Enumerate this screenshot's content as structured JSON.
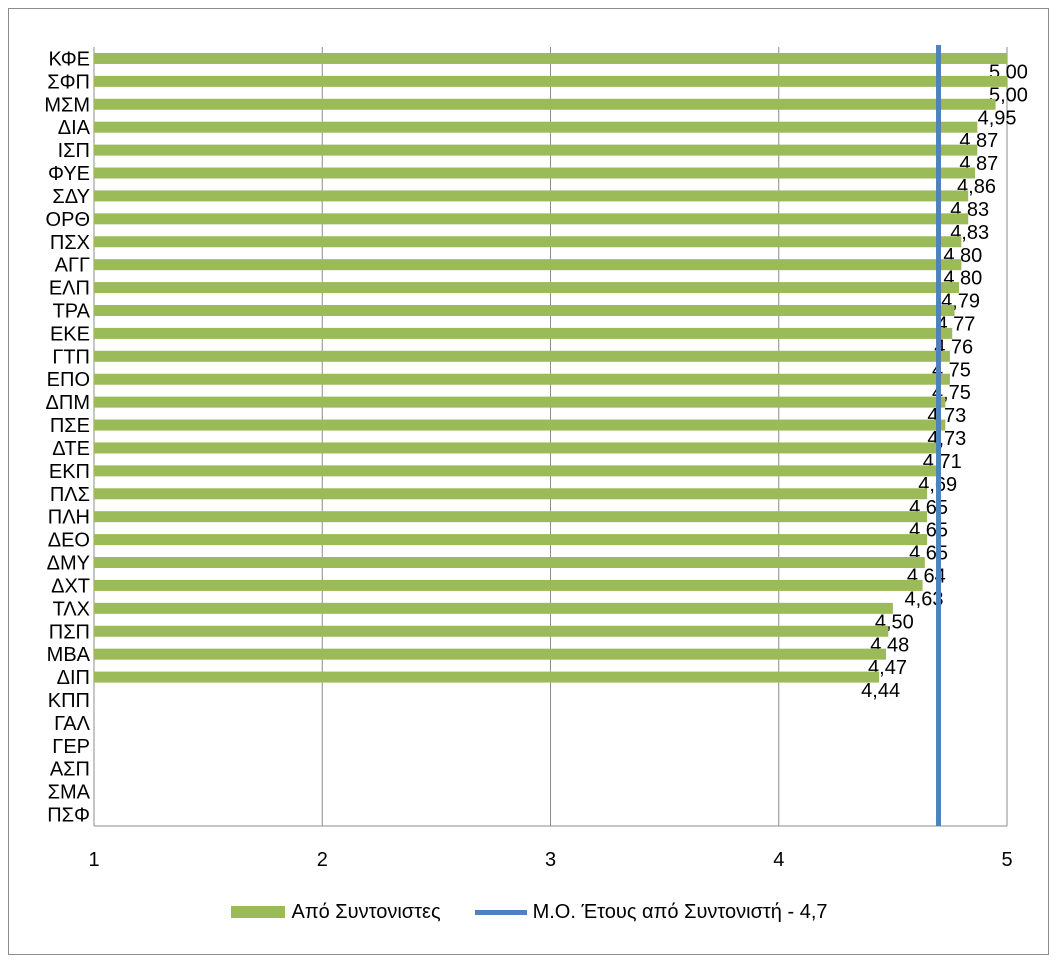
{
  "chart_data": {
    "type": "bar",
    "orientation": "horizontal",
    "title": "",
    "xlabel": "",
    "ylabel": "",
    "xlim": [
      1,
      5
    ],
    "xticks": [
      1,
      2,
      3,
      4,
      5
    ],
    "grid": true,
    "legend_position": "bottom",
    "categories": [
      "ΚΦΕ",
      "ΣΦΠ",
      "ΜΣΜ",
      "ΔΙΑ",
      "ΙΣΠ",
      "ΦΥΕ",
      "ΣΔΥ",
      "ΟΡΘ",
      "ΠΣΧ",
      "ΑΓΓ",
      "ΕΛΠ",
      "ΤΡΑ",
      "ΕΚΕ",
      "ΓΤΠ",
      "ΕΠΟ",
      "ΔΠΜ",
      "ΠΣΕ",
      "ΔΤΕ",
      "ΕΚΠ",
      "ΠΛΣ",
      "ΠΛΗ",
      "ΔΕΟ",
      "ΔΜΥ",
      "ΔΧΤ",
      "ΤΛΧ",
      "ΠΣΠ",
      "ΜΒΑ",
      "ΔΙΠ",
      "ΚΠΠ",
      "ΓΑΛ",
      "ΓΕΡ",
      "ΑΣΠ",
      "ΣΜΑ",
      "ΠΣΦ"
    ],
    "series": [
      {
        "name": "Από Συντονιστες",
        "color": "#9bbb59",
        "values": [
          5.0,
          5.0,
          4.95,
          4.87,
          4.87,
          4.86,
          4.83,
          4.83,
          4.8,
          4.8,
          4.79,
          4.77,
          4.76,
          4.75,
          4.75,
          4.73,
          4.73,
          4.71,
          4.69,
          4.65,
          4.65,
          4.65,
          4.64,
          4.63,
          4.5,
          4.48,
          4.47,
          4.44,
          null,
          null,
          null,
          null,
          null,
          null
        ],
        "labels": [
          "5,00",
          "5,00",
          "4,95",
          "4,87",
          "4,87",
          "4,86",
          "4,83",
          "4,83",
          "4,80",
          "4,80",
          "4,79",
          "4,77",
          "4,76",
          "4,75",
          "4,75",
          "4,73",
          "4,73",
          "4,71",
          "4,69",
          "4,65",
          "4,65",
          "4,65",
          "4,64",
          "4,63",
          "4,50",
          "4,48",
          "4,47",
          "4,44",
          "",
          "",
          "",
          "",
          "",
          ""
        ]
      }
    ],
    "reference_line": {
      "name": "Μ.Ο. Έτους από Συντονιστή - 4,7",
      "value": 4.7,
      "color": "#4f81bd"
    }
  }
}
